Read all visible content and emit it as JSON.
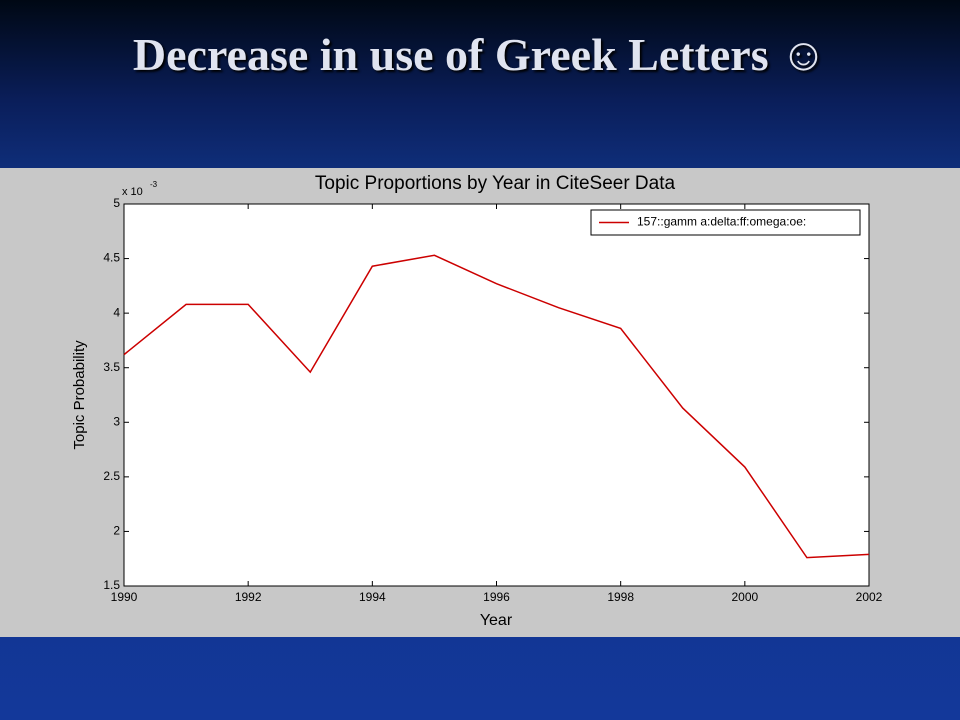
{
  "slide_title": "Decrease in use of Greek Letters ☺",
  "chart_data": {
    "type": "line",
    "title": "Topic Proportions by Year in CiteSeer Data",
    "x_label": "Year",
    "y_label": "Topic Probability",
    "y_multiplier": "x 10",
    "y_multiplier_exponent": "-3",
    "x": [
      1990,
      1991,
      1992,
      1993,
      1994,
      1995,
      1996,
      1997,
      1998,
      1999,
      2000,
      2001,
      2002
    ],
    "series": [
      {
        "name": "157::gamm a:delta:ff:omega:oe:",
        "color": "#cc0000",
        "values": [
          3.62,
          4.08,
          4.08,
          3.46,
          4.43,
          4.53,
          4.27,
          4.05,
          3.86,
          3.13,
          2.59,
          1.76,
          1.79
        ]
      }
    ],
    "xlim": [
      1990,
      2002
    ],
    "xticks": [
      1990,
      1992,
      1994,
      1996,
      1998,
      2000,
      2002
    ],
    "ylim": [
      1.5,
      5
    ],
    "yticks": [
      1.5,
      2,
      2.5,
      3,
      3.5,
      4,
      4.5,
      5
    ],
    "legend": "upper-right"
  }
}
